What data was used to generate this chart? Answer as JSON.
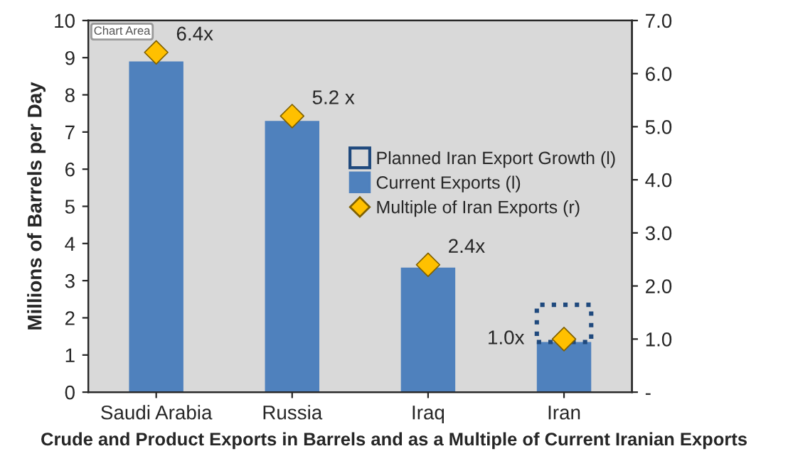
{
  "chart_data": {
    "type": "bar",
    "stacked": true,
    "title": "Crude and Product Exports in Barrels and as a Multiple of Current Iranian Exports",
    "ylabel": "Millions of Barrels per Day",
    "categories": [
      "Saudi Arabia",
      "Russia",
      "Iraq",
      "Iran"
    ],
    "series": [
      {
        "name": "Current Exports (l)",
        "color": "#4f81bd",
        "values": [
          8.9,
          7.3,
          3.35,
          1.35
        ]
      },
      {
        "name": "Planned Iran Export Growth (l)",
        "color": "#1f497d",
        "line_style": "dotted",
        "values": [
          null,
          null,
          null,
          1.0
        ]
      },
      {
        "name": "Multiple of Iran Exports (r)",
        "type": "scatter",
        "axis": "y2",
        "marker": "diamond",
        "color": "#ffc000",
        "values": [
          6.4,
          5.2,
          2.4,
          1.0
        ],
        "value_labels": [
          "6.4x",
          "5.2 x",
          "2.4x",
          "1.0x"
        ]
      }
    ],
    "ylim": [
      0,
      10
    ],
    "yticks": [
      0,
      1,
      2,
      3,
      4,
      5,
      6,
      7,
      8,
      9,
      10
    ],
    "y2lim": [
      0,
      7
    ],
    "y2ticks": [
      {
        "value": 0,
        "label": "-"
      },
      {
        "value": 1,
        "label": "1.0"
      },
      {
        "value": 2,
        "label": "2.0"
      },
      {
        "value": 3,
        "label": "3.0"
      },
      {
        "value": 4,
        "label": "4.0"
      },
      {
        "value": 5,
        "label": "5.0"
      },
      {
        "value": 6,
        "label": "6.0"
      },
      {
        "value": 7,
        "label": "7.0"
      }
    ],
    "annotations": [
      "Chart Area"
    ],
    "grid": false,
    "legend": "right"
  }
}
